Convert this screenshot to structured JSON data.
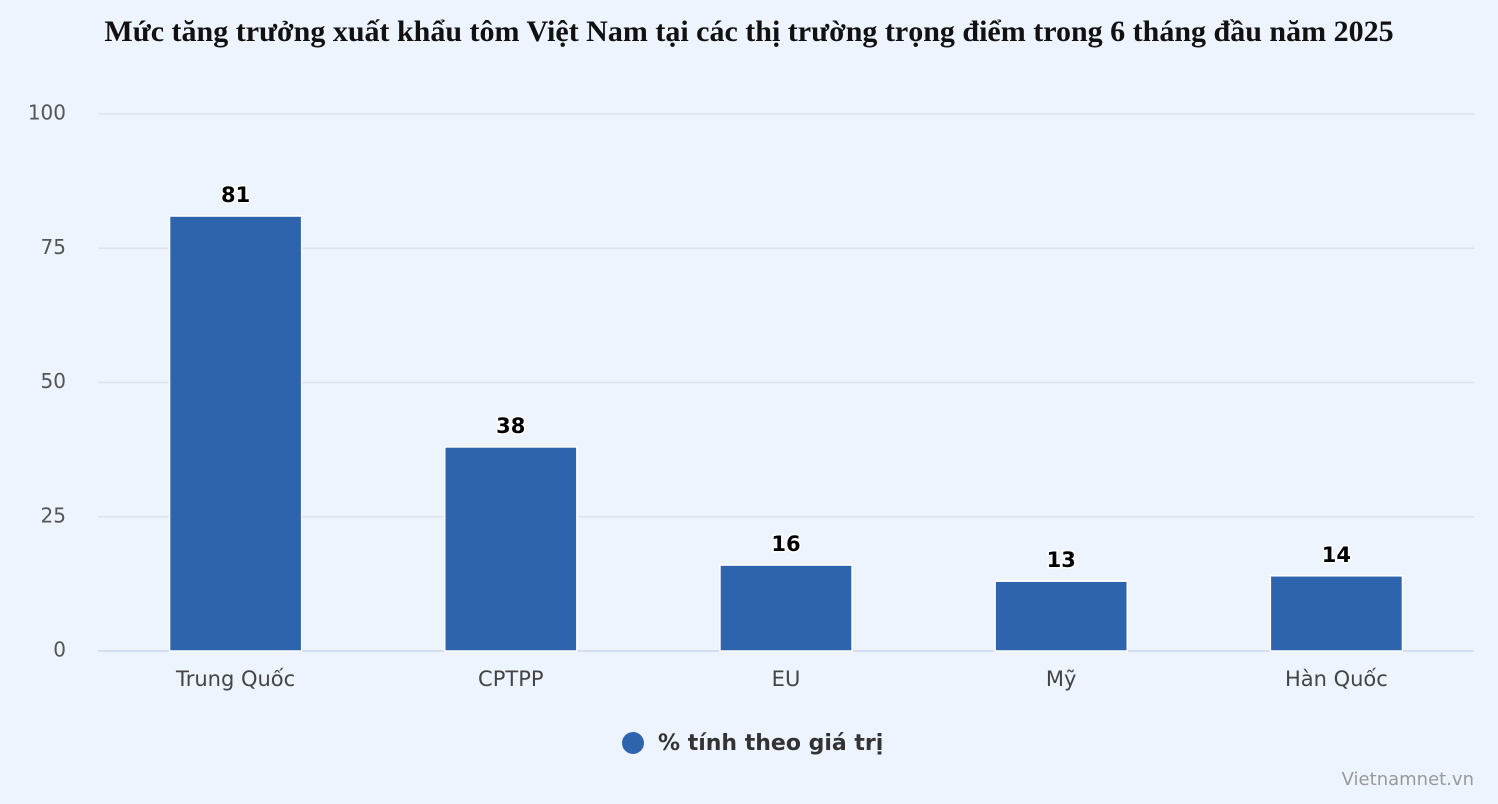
{
  "chart_data": {
    "type": "bar",
    "title": "Mức tăng trưởng xuất khẩu tôm Việt Nam tại các thị trường trọng điểm trong 6 tháng đầu năm 2025",
    "categories": [
      "Trung Quốc",
      "CPTPP",
      "EU",
      "Mỹ",
      "Hàn Quốc"
    ],
    "series": [
      {
        "name": "% tính theo giá trị",
        "color": "#2e63ae",
        "values": [
          81,
          38,
          16,
          13,
          14
        ]
      }
    ],
    "ylim": [
      0,
      100
    ],
    "yticks": [
      0,
      25,
      50,
      75,
      100
    ],
    "grid": true,
    "legend": "bottom",
    "credit": "Vietnamnet.vn"
  }
}
